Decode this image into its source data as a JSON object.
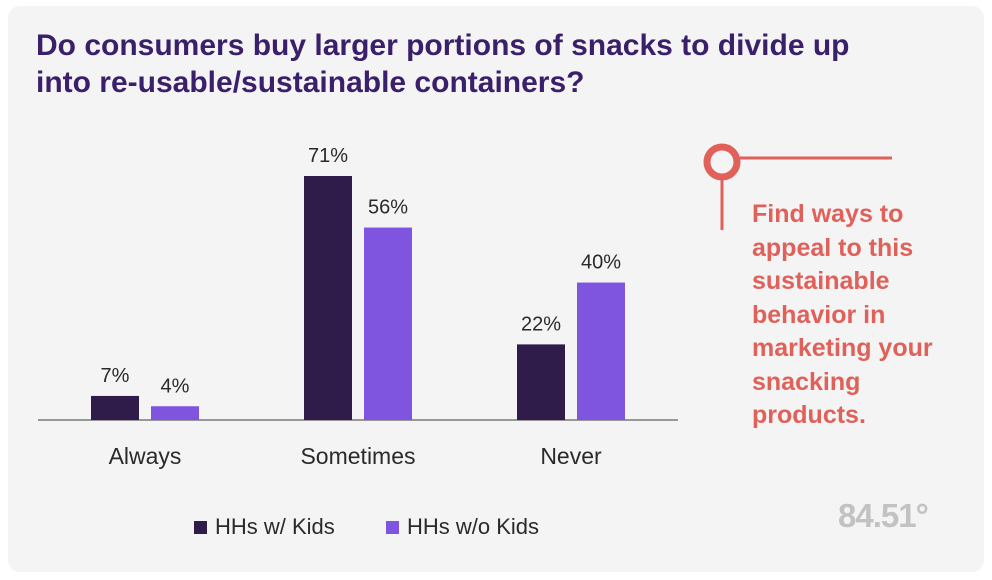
{
  "title": "Do consumers buy larger portions of snacks to divide up into re-usable/sustainable containers?",
  "callout": "Find ways to appeal to this sustainable behavior in marketing your snacking products.",
  "logo_text": "84.51°",
  "colors": {
    "series1": "#2f1c4a",
    "series2": "#7f55e0",
    "title": "#3a1f6b",
    "callout": "#e0605a",
    "text": "#2a2a2a"
  },
  "chart_data": {
    "type": "bar",
    "title": "Do consumers buy larger portions of snacks to divide up into re-usable/sustainable containers?",
    "categories": [
      "Always",
      "Sometimes",
      "Never"
    ],
    "series": [
      {
        "name": "HHs w/ Kids",
        "values": [
          7,
          71,
          22
        ],
        "labels": [
          "7%",
          "71%",
          "22%"
        ]
      },
      {
        "name": "HHs w/o Kids",
        "values": [
          4,
          56,
          40
        ],
        "labels": [
          "4%",
          "56%",
          "40%"
        ]
      }
    ],
    "xlabel": "",
    "ylabel": "",
    "ylim": [
      0,
      71
    ],
    "legend": "bottom",
    "grid": false
  }
}
